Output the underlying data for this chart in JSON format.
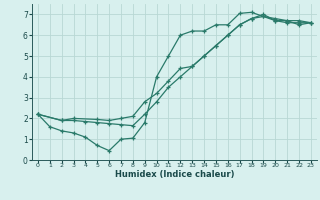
{
  "xlabel": "Humidex (Indice chaleur)",
  "bg_color": "#d8f0ee",
  "grid_color": "#b8d8d4",
  "line_color": "#2a7a6a",
  "xlim": [
    -0.5,
    23.5
  ],
  "ylim": [
    0,
    7.5
  ],
  "xticks": [
    0,
    1,
    2,
    3,
    4,
    5,
    6,
    7,
    8,
    9,
    10,
    11,
    12,
    13,
    14,
    15,
    16,
    17,
    18,
    19,
    20,
    21,
    22,
    23
  ],
  "yticks": [
    0,
    1,
    2,
    3,
    4,
    5,
    6,
    7
  ],
  "line1_x": [
    0,
    1,
    2,
    3,
    4,
    5,
    6,
    7,
    8,
    9,
    10,
    11,
    12,
    13,
    14,
    15,
    16,
    17,
    18,
    19,
    20,
    21,
    22,
    23
  ],
  "line1_y": [
    2.2,
    1.6,
    1.4,
    1.3,
    1.1,
    0.7,
    0.45,
    1.0,
    1.05,
    1.8,
    4.0,
    5.0,
    6.0,
    6.2,
    6.2,
    6.5,
    6.5,
    7.05,
    7.1,
    6.9,
    6.7,
    6.7,
    6.5,
    6.6
  ],
  "line2_x": [
    0,
    2,
    3,
    4,
    5,
    6,
    7,
    8,
    9,
    10,
    11,
    12,
    13,
    14,
    15,
    16,
    17,
    18,
    19,
    20,
    21,
    22,
    23
  ],
  "line2_y": [
    2.2,
    1.9,
    1.9,
    1.85,
    1.8,
    1.75,
    1.7,
    1.65,
    2.2,
    2.8,
    3.5,
    4.0,
    4.5,
    5.0,
    5.5,
    6.0,
    6.5,
    6.8,
    7.0,
    6.7,
    6.6,
    6.6,
    6.6
  ],
  "line3_x": [
    0,
    2,
    3,
    5,
    6,
    7,
    8,
    9,
    10,
    11,
    12,
    13,
    14,
    15,
    16,
    17,
    18,
    19,
    20,
    21,
    22,
    23
  ],
  "line3_y": [
    2.2,
    1.9,
    2.0,
    1.95,
    1.9,
    2.0,
    2.1,
    2.8,
    3.2,
    3.8,
    4.4,
    4.5,
    5.0,
    5.5,
    6.0,
    6.5,
    6.8,
    6.9,
    6.8,
    6.7,
    6.7,
    6.6
  ]
}
